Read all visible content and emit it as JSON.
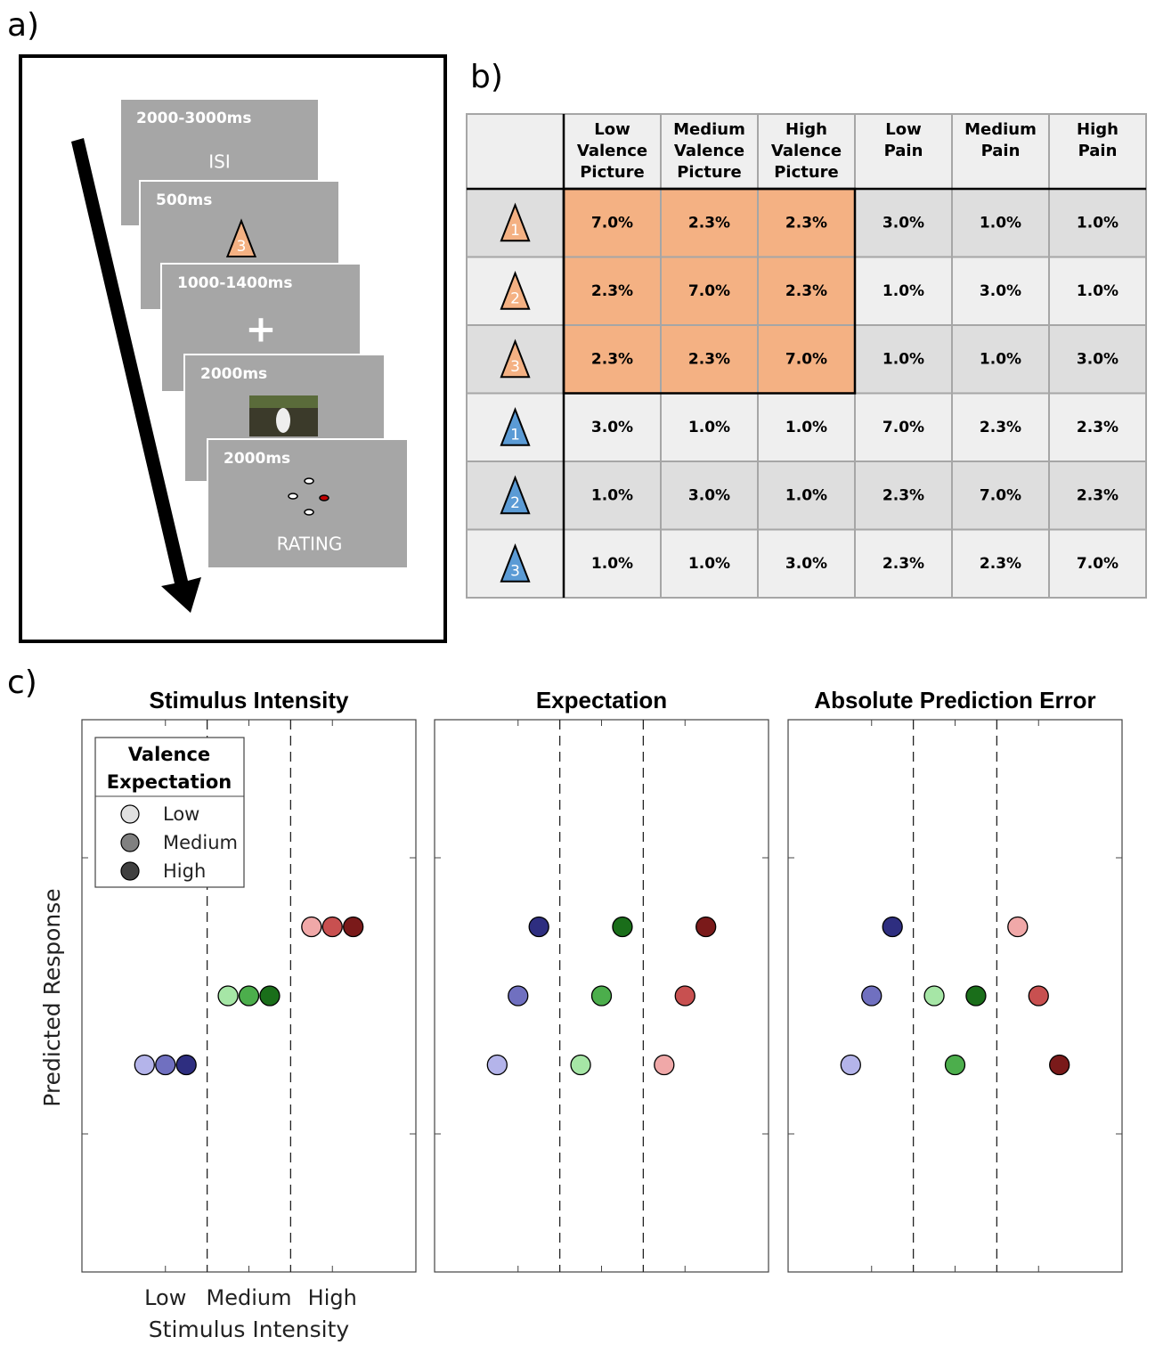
{
  "panel_labels": [
    "a)",
    "b)",
    "c)"
  ],
  "timeline": {
    "frames": [
      {
        "duration": "2000-3000ms",
        "label": "ISI"
      },
      {
        "duration": "500ms",
        "cue": "3",
        "cue_color": "#f4b183"
      },
      {
        "duration": "1000-1400ms",
        "symbol": "+"
      },
      {
        "duration": "2000ms"
      },
      {
        "duration": "2000ms",
        "label": "RATING"
      }
    ]
  },
  "table": {
    "columns": [
      [
        "Low",
        "Valence",
        "Picture"
      ],
      [
        "Medium",
        "Valence",
        "Picture"
      ],
      [
        "High",
        "Valence",
        "Picture"
      ],
      [
        "Low",
        "Pain"
      ],
      [
        "Medium",
        "Pain"
      ],
      [
        "High",
        "Pain"
      ]
    ],
    "rows": [
      {
        "cue": "1",
        "cue_color": "#f4b183",
        "cells": [
          "7.0%",
          "2.3%",
          "2.3%",
          "3.0%",
          "1.0%",
          "1.0%"
        ]
      },
      {
        "cue": "2",
        "cue_color": "#f4b183",
        "cells": [
          "2.3%",
          "7.0%",
          "2.3%",
          "1.0%",
          "3.0%",
          "1.0%"
        ]
      },
      {
        "cue": "3",
        "cue_color": "#f4b183",
        "cells": [
          "2.3%",
          "2.3%",
          "7.0%",
          "1.0%",
          "1.0%",
          "3.0%"
        ]
      },
      {
        "cue": "1",
        "cue_color": "#5b9bd5",
        "cells": [
          "3.0%",
          "1.0%",
          "1.0%",
          "7.0%",
          "2.3%",
          "2.3%"
        ]
      },
      {
        "cue": "2",
        "cue_color": "#5b9bd5",
        "cells": [
          "1.0%",
          "3.0%",
          "1.0%",
          "2.3%",
          "7.0%",
          "2.3%"
        ]
      },
      {
        "cue": "3",
        "cue_color": "#5b9bd5",
        "cells": [
          "1.0%",
          "1.0%",
          "3.0%",
          "2.3%",
          "2.3%",
          "7.0%"
        ]
      }
    ]
  },
  "chart_data": [
    {
      "type": "scatter",
      "title": "Stimulus Intensity",
      "xlabel": "Stimulus Intensity",
      "ylabel": "Predicted Response",
      "xlim": [
        0,
        4
      ],
      "ylim": [
        -2,
        6
      ],
      "xticks": [
        {
          "value": 1,
          "label": "Low"
        },
        {
          "value": 2,
          "label": "Medium"
        },
        {
          "value": 3,
          "label": "High"
        }
      ],
      "yticks": [
        0,
        4
      ],
      "dividers": [
        1.5,
        2.5
      ],
      "legend": {
        "title": [
          "Valence",
          "Expectation"
        ],
        "entries": [
          {
            "label": "Low",
            "color": "#e0e0e0"
          },
          {
            "label": "Medium",
            "color": "#808080"
          },
          {
            "label": "High",
            "color": "#404040"
          }
        ]
      },
      "series": [
        {
          "color": "#b4b4ea",
          "x": [
            0.75
          ],
          "y": [
            1
          ]
        },
        {
          "color": "#7070c0",
          "x": [
            1
          ],
          "y": [
            1
          ]
        },
        {
          "color": "#2e2e80",
          "x": [
            1.25
          ],
          "y": [
            1
          ]
        },
        {
          "color": "#a6e6a6",
          "x": [
            1.75
          ],
          "y": [
            2
          ]
        },
        {
          "color": "#4cae4c",
          "x": [
            2
          ],
          "y": [
            2
          ]
        },
        {
          "color": "#1a6e1a",
          "x": [
            2.25
          ],
          "y": [
            2
          ]
        },
        {
          "color": "#f0a8a8",
          "x": [
            2.75
          ],
          "y": [
            3
          ]
        },
        {
          "color": "#c85050",
          "x": [
            3
          ],
          "y": [
            3
          ]
        },
        {
          "color": "#7a1a1a",
          "x": [
            3.25
          ],
          "y": [
            3
          ]
        }
      ]
    },
    {
      "type": "scatter",
      "title": "Expectation",
      "xlim": [
        0,
        4
      ],
      "ylim": [
        -2,
        6
      ],
      "xticks": [
        1,
        2,
        3
      ],
      "yticks": [
        0,
        4
      ],
      "dividers": [
        1.5,
        2.5
      ],
      "series": [
        {
          "color": "#b4b4ea",
          "x": [
            0.75
          ],
          "y": [
            1
          ]
        },
        {
          "color": "#7070c0",
          "x": [
            1
          ],
          "y": [
            2
          ]
        },
        {
          "color": "#2e2e80",
          "x": [
            1.25
          ],
          "y": [
            3
          ]
        },
        {
          "color": "#a6e6a6",
          "x": [
            1.75
          ],
          "y": [
            1
          ]
        },
        {
          "color": "#4cae4c",
          "x": [
            2
          ],
          "y": [
            2
          ]
        },
        {
          "color": "#1a6e1a",
          "x": [
            2.25
          ],
          "y": [
            3
          ]
        },
        {
          "color": "#f0a8a8",
          "x": [
            2.75
          ],
          "y": [
            1
          ]
        },
        {
          "color": "#c85050",
          "x": [
            3
          ],
          "y": [
            2
          ]
        },
        {
          "color": "#7a1a1a",
          "x": [
            3.25
          ],
          "y": [
            3
          ]
        }
      ]
    },
    {
      "type": "scatter",
      "title": "Absolute Prediction Error",
      "xlim": [
        0,
        4
      ],
      "ylim": [
        -2,
        6
      ],
      "xticks": [
        1,
        2,
        3
      ],
      "yticks": [
        0,
        4
      ],
      "dividers": [
        1.5,
        2.5
      ],
      "series": [
        {
          "color": "#b4b4ea",
          "x": [
            0.75
          ],
          "y": [
            1
          ]
        },
        {
          "color": "#7070c0",
          "x": [
            1
          ],
          "y": [
            2
          ]
        },
        {
          "color": "#2e2e80",
          "x": [
            1.25
          ],
          "y": [
            3
          ]
        },
        {
          "color": "#a6e6a6",
          "x": [
            1.75
          ],
          "y": [
            2
          ]
        },
        {
          "color": "#4cae4c",
          "x": [
            2
          ],
          "y": [
            1
          ]
        },
        {
          "color": "#1a6e1a",
          "x": [
            2.25
          ],
          "y": [
            2
          ]
        },
        {
          "color": "#f0a8a8",
          "x": [
            2.75
          ],
          "y": [
            3
          ]
        },
        {
          "color": "#c85050",
          "x": [
            3
          ],
          "y": [
            2
          ]
        },
        {
          "color": "#7a1a1a",
          "x": [
            3.25
          ],
          "y": [
            1
          ]
        }
      ]
    }
  ]
}
